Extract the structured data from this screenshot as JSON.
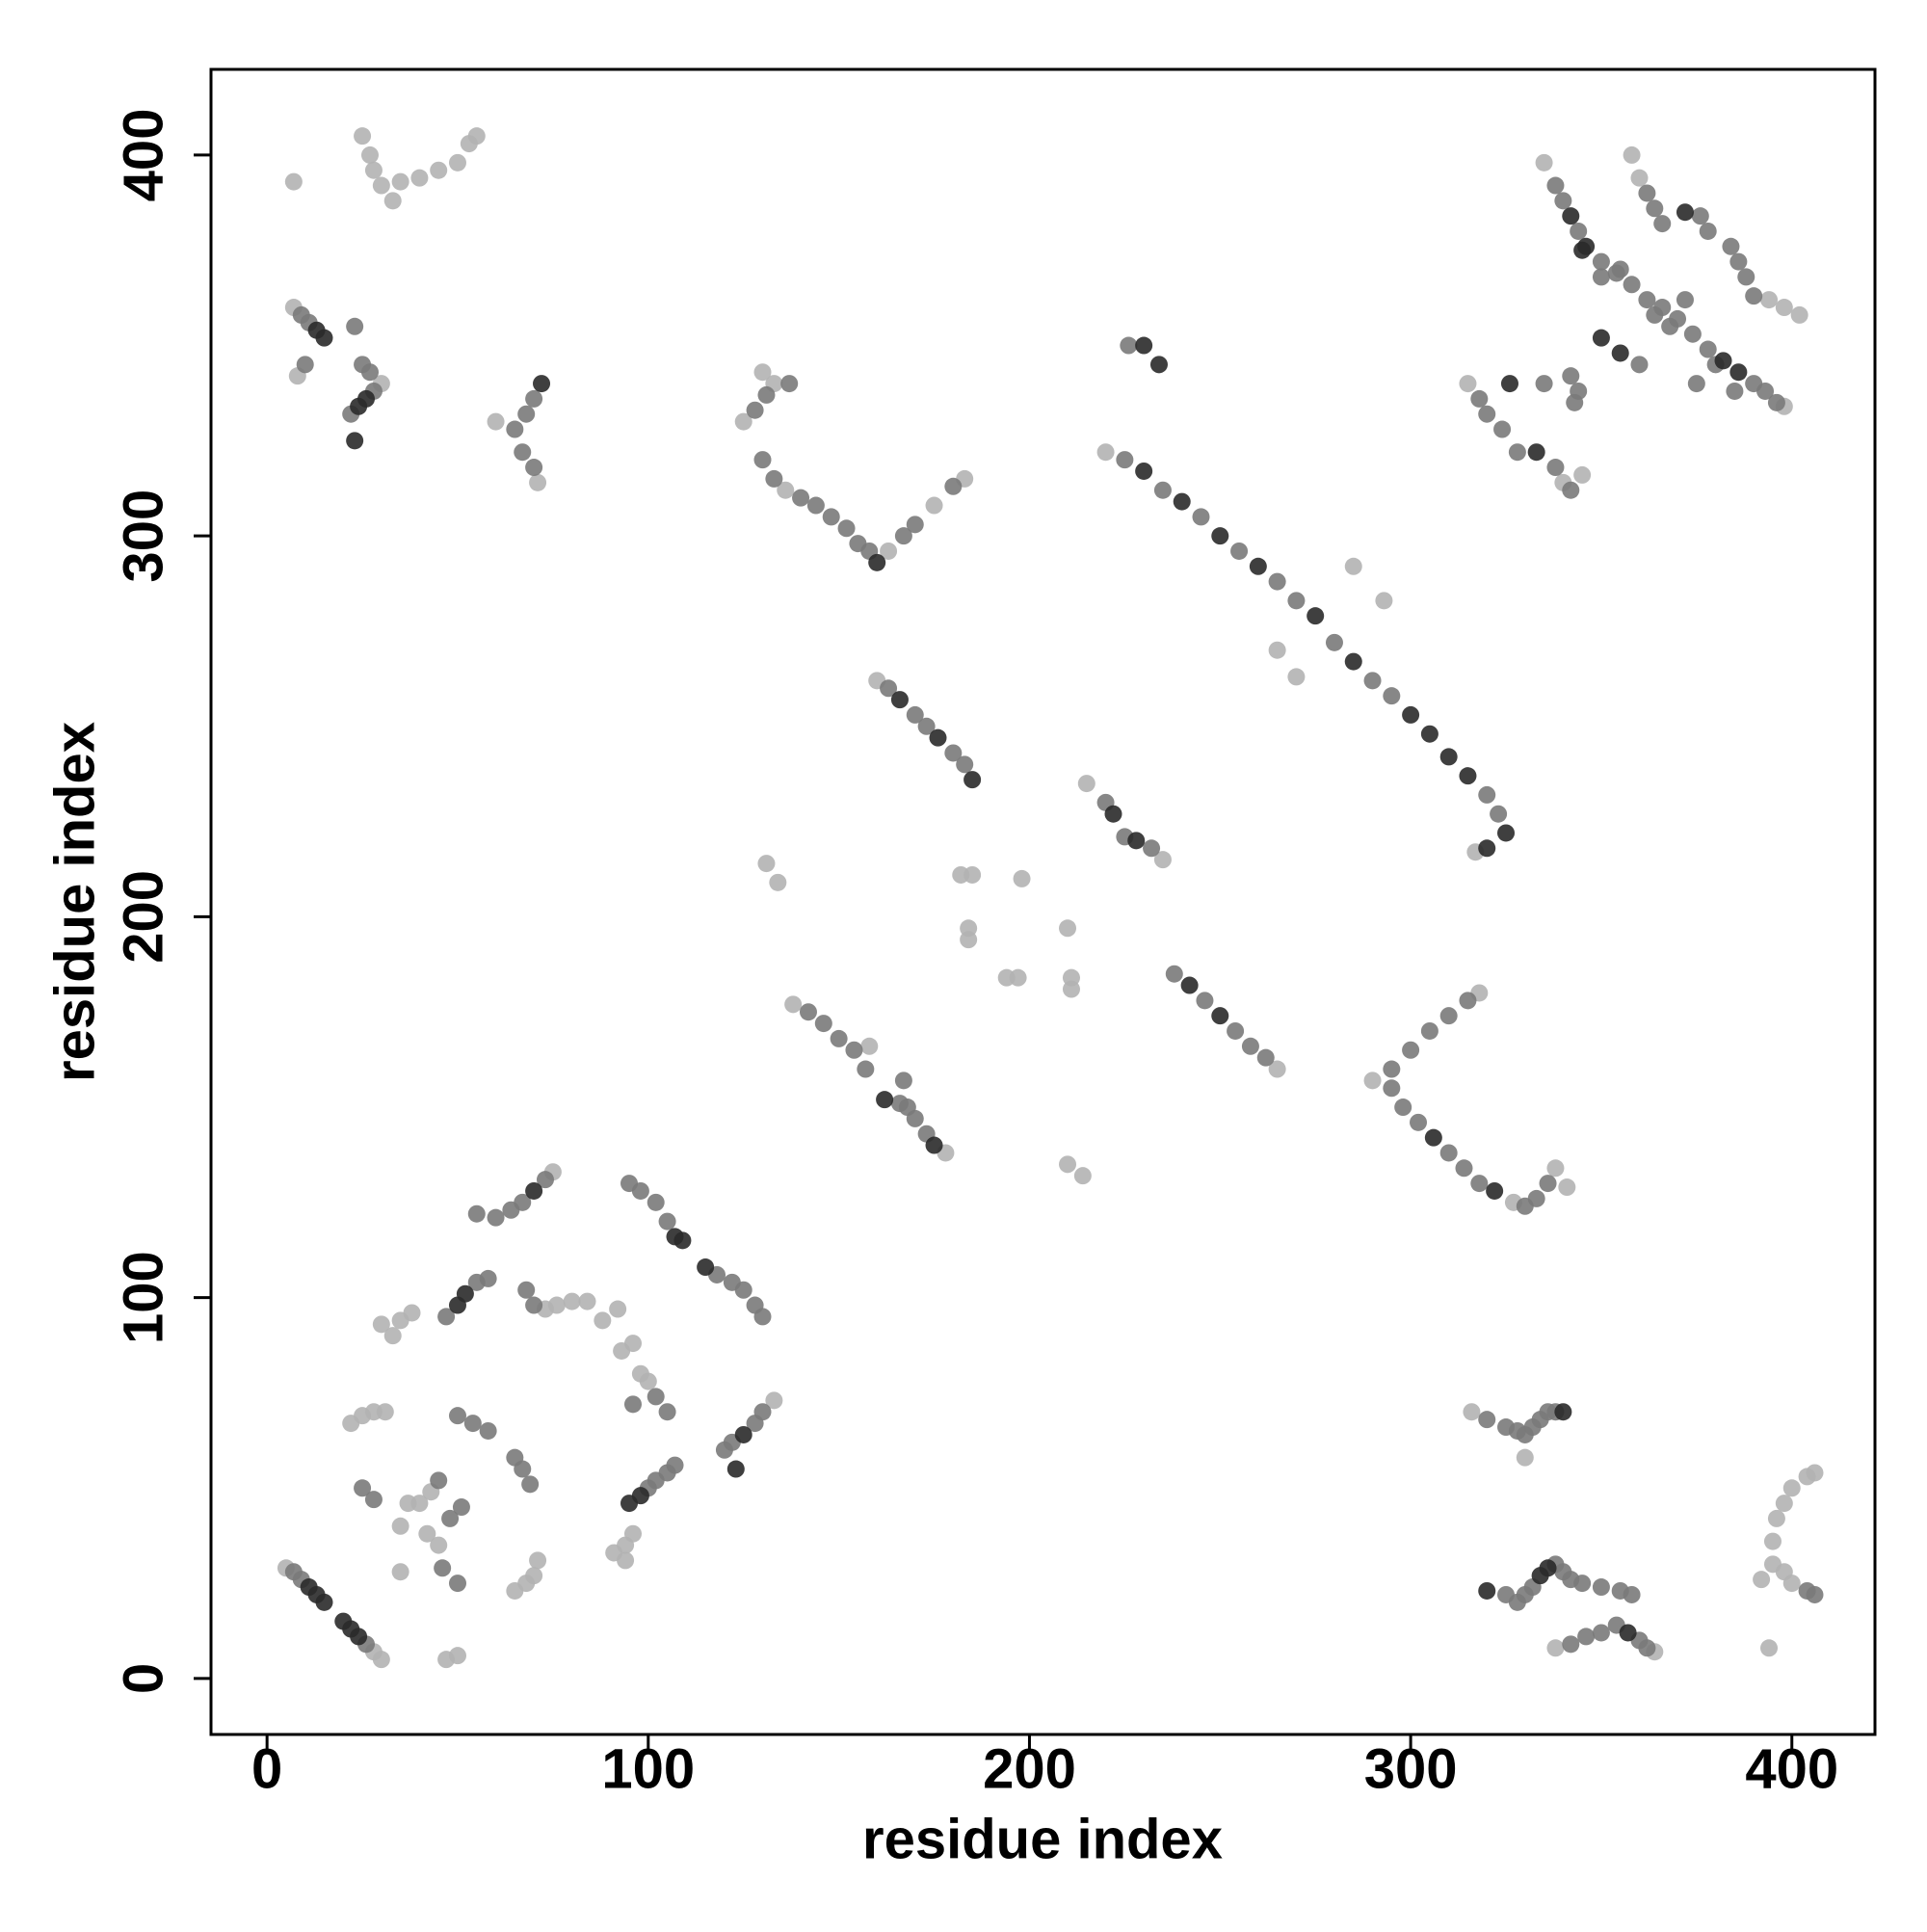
{
  "chart_data": {
    "type": "scatter",
    "x_label": "residue index",
    "y_label": "residue index",
    "xlim": [
      -14.7,
      421.8
    ],
    "ylim": [
      -14.7,
      422.5
    ],
    "xticks": [
      0,
      100,
      200,
      300,
      400
    ],
    "yticks": [
      0,
      100,
      200,
      300,
      400
    ],
    "series": [
      {
        "color": "#b3b3b3",
        "x": [
          5,
          28,
          30,
          7,
          30,
          8,
          25,
          27,
          28,
          30,
          33,
          35,
          40,
          45,
          50,
          53,
          55,
          7,
          60,
          71,
          125,
          133,
          136,
          163,
          175,
          183,
          130,
          220,
          317,
          265,
          270,
          285,
          293,
          160,
          215,
          235,
          131,
          134,
          182,
          185,
          198,
          184,
          184,
          210,
          211,
          211,
          194,
          197,
          210,
          214,
          138,
          178,
          158,
          265,
          290,
          318,
          327,
          338,
          341,
          315,
          345,
          340,
          335,
          398,
          358,
          360,
          402,
          398,
          394,
          316,
          330,
          338,
          364,
          394,
          392,
          395,
          398,
          400,
          395,
          396,
          398,
          400,
          404,
          406,
          75,
          73,
          76,
          80,
          84,
          88,
          92,
          30,
          33,
          35,
          38,
          22,
          25,
          28,
          31,
          93,
          96,
          98,
          100,
          35,
          37,
          40,
          42,
          45,
          35,
          91,
          94,
          96,
          94,
          65,
          68,
          70,
          71,
          47,
          50,
          133,
          43
        ],
        "y": [
          29,
          7,
          5,
          360,
          340,
          342,
          405,
          400,
          396,
          392,
          388,
          393,
          394,
          396,
          398,
          403,
          405,
          393,
          330,
          314,
          330,
          340,
          312,
          296,
          308,
          315,
          343,
          322,
          217,
          270,
          263,
          292,
          283,
          262,
          235,
          215,
          214,
          209,
          211,
          211,
          210,
          197,
          194,
          197,
          184,
          181,
          184,
          184,
          135,
          132,
          177,
          138,
          166,
          160,
          157,
          180,
          125,
          134,
          129,
          340,
          316,
          314,
          398,
          334,
          400,
          394,
          358,
          360,
          362,
          70,
          58,
          8,
          7,
          8,
          26,
          30,
          28,
          25,
          36,
          42,
          46,
          50,
          53,
          54,
          133,
          97,
          98,
          99,
          99,
          94,
          97,
          93,
          90,
          94,
          96,
          67,
          69,
          70,
          70,
          86,
          88,
          80,
          78,
          40,
          46,
          46,
          38,
          35,
          28,
          33,
          35,
          38,
          31,
          23,
          25,
          27,
          31,
          5,
          6,
          73,
          49
        ]
      },
      {
        "color": "#7a7a7a",
        "x": [
          7,
          9,
          26,
          9,
          11,
          10,
          22,
          28,
          23,
          25,
          27,
          65,
          68,
          70,
          67,
          70,
          128,
          131,
          130,
          133,
          140,
          144,
          148,
          152,
          155,
          158,
          167,
          170,
          180,
          137,
          225,
          235,
          245,
          255,
          265,
          270,
          280,
          290,
          295,
          320,
          323,
          226,
          163,
          170,
          173,
          180,
          183,
          220,
          225,
          232,
          142,
          146,
          150,
          154,
          157,
          166,
          168,
          170,
          173,
          167,
          238,
          246,
          254,
          258,
          262,
          295,
          300,
          305,
          310,
          315,
          295,
          298,
          302,
          310,
          314,
          318,
          330,
          333,
          336,
          318,
          320,
          324,
          328,
          335,
          338,
          342,
          343,
          342,
          344,
          338,
          340,
          344,
          350,
          354,
          358,
          362,
          366,
          370,
          374,
          378,
          390,
          393,
          396,
          360,
          362,
          364,
          366,
          376,
          378,
          384,
          386,
          388,
          390,
          350,
          355,
          372,
          368,
          364,
          375,
          380,
          385,
          320,
          325,
          328,
          330,
          332,
          334,
          336,
          338,
          325,
          328,
          330,
          332,
          338,
          340,
          342,
          345,
          350,
          355,
          358,
          342,
          346,
          350,
          354,
          360,
          362,
          404,
          406,
          55,
          60,
          64,
          67,
          73,
          47,
          55,
          58,
          95,
          98,
          102,
          105,
          118,
          122,
          125,
          128,
          130,
          68,
          70,
          50,
          54,
          58,
          65,
          67,
          69,
          100,
          102,
          105,
          107,
          120,
          122,
          128,
          130,
          102,
          105,
          96,
          25,
          28,
          45,
          48,
          51,
          46,
          50
        ],
        "y": [
          28,
          26,
          9,
          358,
          356,
          345,
          332,
          338,
          355,
          345,
          343,
          328,
          332,
          336,
          322,
          318,
          333,
          337,
          320,
          315,
          310,
          308,
          305,
          302,
          298,
          296,
          300,
          303,
          313,
          340,
          320,
          312,
          305,
          296,
          288,
          283,
          272,
          262,
          258,
          232,
          227,
          350,
          260,
          253,
          250,
          243,
          240,
          230,
          221,
          218,
          175,
          172,
          168,
          165,
          160,
          151,
          150,
          147,
          143,
          157,
          185,
          178,
          170,
          166,
          163,
          160,
          165,
          170,
          174,
          178,
          155,
          150,
          146,
          138,
          134,
          130,
          124,
          126,
          130,
          336,
          332,
          328,
          322,
          340,
          318,
          312,
          335,
          342,
          338,
          392,
          388,
          380,
          372,
          369,
          366,
          362,
          360,
          357,
          353,
          349,
          340,
          338,
          335,
          345,
          390,
          386,
          382,
          384,
          380,
          376,
          372,
          368,
          363,
          368,
          370,
          362,
          355,
          358,
          340,
          345,
          338,
          68,
          66,
          65,
          64,
          66,
          68,
          70,
          70,
          22,
          20,
          22,
          24,
          30,
          28,
          26,
          25,
          24,
          23,
          22,
          9,
          11,
          12,
          14,
          10,
          8,
          23,
          22,
          122,
          121,
          123,
          125,
          131,
          95,
          104,
          105,
          130,
          128,
          125,
          120,
          106,
          104,
          102,
          98,
          95,
          102,
          98,
          69,
          67,
          65,
          58,
          55,
          51,
          50,
          52,
          54,
          56,
          60,
          62,
          67,
          70,
          74,
          70,
          72,
          50,
          47,
          52,
          42,
          45,
          29,
          25
        ]
      },
      {
        "color": "#2a2a2a",
        "x": [
          11,
          13,
          15,
          20,
          22,
          24,
          13,
          15,
          24,
          26,
          23,
          72,
          160,
          230,
          240,
          250,
          260,
          275,
          285,
          300,
          305,
          310,
          315,
          325,
          320,
          230,
          234,
          166,
          176,
          185,
          222,
          228,
          162,
          175,
          242,
          250,
          306,
          322,
          326,
          333,
          342,
          346,
          382,
          386,
          350,
          355,
          345,
          372,
          340,
          320,
          334,
          336,
          357,
          70,
          50,
          52,
          107,
          109,
          115,
          95,
          98,
          125,
          123
        ],
        "y": [
          24,
          22,
          20,
          15,
          13,
          11,
          354,
          352,
          334,
          336,
          325,
          340,
          293,
          317,
          309,
          300,
          292,
          279,
          267,
          253,
          248,
          242,
          237,
          222,
          218,
          350,
          345,
          257,
          247,
          236,
          227,
          220,
          152,
          140,
          182,
          174,
          142,
          128,
          340,
          322,
          384,
          376,
          346,
          343,
          352,
          348,
          375,
          385,
          70,
          23,
          27,
          29,
          12,
          128,
          98,
          101,
          116,
          115,
          108,
          46,
          48,
          64,
          55
        ]
      }
    ]
  }
}
